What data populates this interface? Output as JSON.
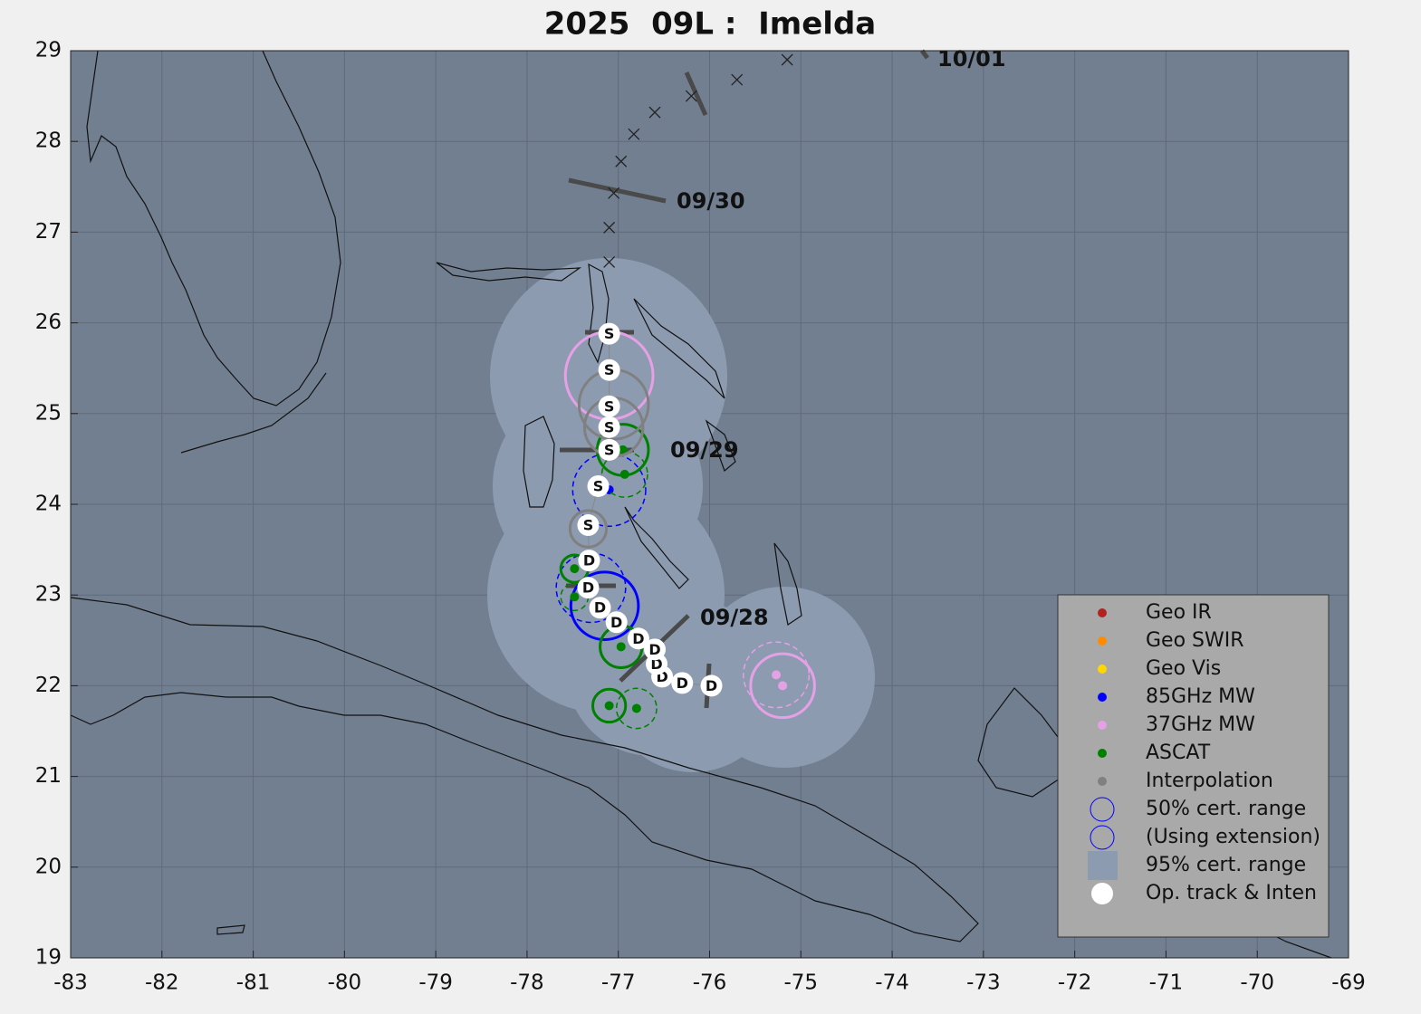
{
  "chart_data": {
    "type": "track",
    "title": "2025  09L :  Imelda",
    "xlim": [
      -83,
      -69
    ],
    "ylim": [
      19,
      29
    ],
    "xticks": [
      -83,
      -82,
      -81,
      -80,
      -79,
      -78,
      -77,
      -76,
      -75,
      -74,
      -73,
      -72,
      -71,
      -70,
      -69
    ],
    "yticks": [
      19,
      20,
      21,
      22,
      23,
      24,
      25,
      26,
      27,
      28,
      29
    ],
    "grid": true,
    "legend": "lower right",
    "track": {
      "name": "Op. track & Inten",
      "color": "#ffffff",
      "lon": [
        -75.98,
        -76.3,
        -76.52,
        -76.58,
        -76.6,
        -76.78,
        -77.02,
        -77.2,
        -77.33,
        -77.32,
        -77.33,
        -77.22,
        -77.1,
        -77.1,
        -77.1,
        -77.1,
        -77.1
      ],
      "lat": [
        22.0,
        22.03,
        22.1,
        22.24,
        22.4,
        22.52,
        22.7,
        22.86,
        23.08,
        23.38,
        23.77,
        24.2,
        24.6,
        24.85,
        25.08,
        25.48,
        25.88
      ],
      "labels": [
        "D",
        "D",
        "D",
        "D",
        "D",
        "D",
        "D",
        "D",
        "D",
        "D",
        "S",
        "S",
        "S",
        "S",
        "S",
        "S",
        "S"
      ]
    },
    "forecast": {
      "lon": [
        -77.1,
        -77.1,
        -77.05,
        -76.97,
        -76.83,
        -76.6,
        -76.2,
        -75.7,
        -75.15
      ],
      "lat": [
        26.67,
        27.05,
        27.43,
        27.78,
        28.08,
        28.32,
        28.5,
        28.68,
        28.9
      ]
    },
    "date_labels": [
      "09/28",
      "09/29",
      "09/30",
      "10/01"
    ],
    "series": [
      {
        "name": "Geo IR",
        "color": "#b22222",
        "lon": [],
        "lat": [],
        "radius": [],
        "extension": []
      },
      {
        "name": "Geo SWIR",
        "color": "#ff8c00",
        "lon": [],
        "lat": [],
        "radius": [],
        "extension": []
      },
      {
        "name": "Geo Vis",
        "color": "#ffd700",
        "lon": [],
        "lat": [],
        "radius": [],
        "extension": []
      },
      {
        "name": "85GHz MW",
        "color": "#0000ff",
        "lon": [
          -77.1,
          -77.15,
          -77.3
        ],
        "lat": [
          24.16,
          22.88,
          23.08
        ],
        "radius": [
          0.4,
          0.37,
          0.38
        ],
        "extension": [
          true,
          false,
          true
        ]
      },
      {
        "name": "37GHz MW",
        "color": "#e6a0e6",
        "lon": [
          -77.1,
          -75.2,
          -75.27
        ],
        "lat": [
          25.42,
          22.0,
          22.12
        ],
        "radius": [
          0.48,
          0.35,
          0.36
        ],
        "extension": [
          false,
          false,
          true
        ]
      },
      {
        "name": "ASCAT",
        "color": "#008000",
        "lon": [
          -76.95,
          -76.93,
          -77.48,
          -77.48,
          -76.97,
          -77.1,
          -76.8
        ],
        "lat": [
          24.6,
          24.33,
          23.29,
          22.98,
          22.43,
          21.78,
          21.75
        ],
        "radius": [
          0.28,
          0.25,
          0.15,
          0.15,
          0.23,
          0.18,
          0.22
        ],
        "extension": [
          false,
          true,
          false,
          true,
          false,
          false,
          true
        ]
      },
      {
        "name": "Interpolation",
        "color": "#808080",
        "lon": [
          -77.05,
          -77.05,
          -77.33
        ],
        "lat": [
          25.1,
          24.85,
          23.73
        ],
        "radius": [
          0.38,
          0.32,
          0.2
        ],
        "extension": [
          false,
          false,
          false
        ]
      }
    ],
    "legend_extra": [
      {
        "name": "50% cert. range",
        "color": "#0000ff"
      },
      {
        "name": "(Using extension)",
        "color": "#0000ff"
      },
      {
        "name": "95% cert. range",
        "color": "#8d9bb0"
      }
    ]
  }
}
